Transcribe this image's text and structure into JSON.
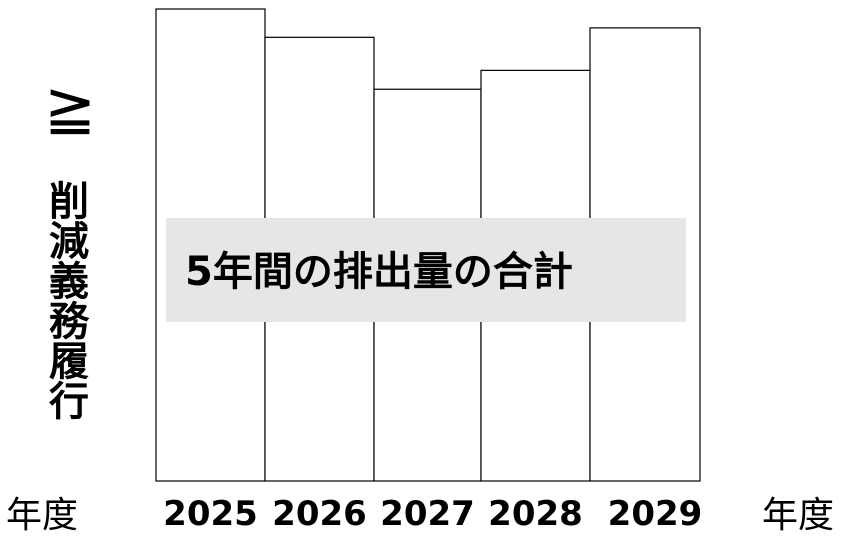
{
  "chart_data": {
    "type": "bar",
    "categories": [
      "2025",
      "2026",
      "2027",
      "2028",
      "2029"
    ],
    "values": [
      100,
      94,
      83,
      87,
      96
    ],
    "xlabel": "年度",
    "ylabel": "削減義務履行"
  },
  "labels": {
    "relation_symbol": "≧",
    "vertical_label": "削減義務履行",
    "total_label": "5年間の排出量の合計",
    "unit_left": "年度",
    "unit_right": "年度"
  },
  "colors": {
    "bar_fill": "#ffffff",
    "bar_stroke": "#000000",
    "total_box": "#e6e6e6"
  }
}
